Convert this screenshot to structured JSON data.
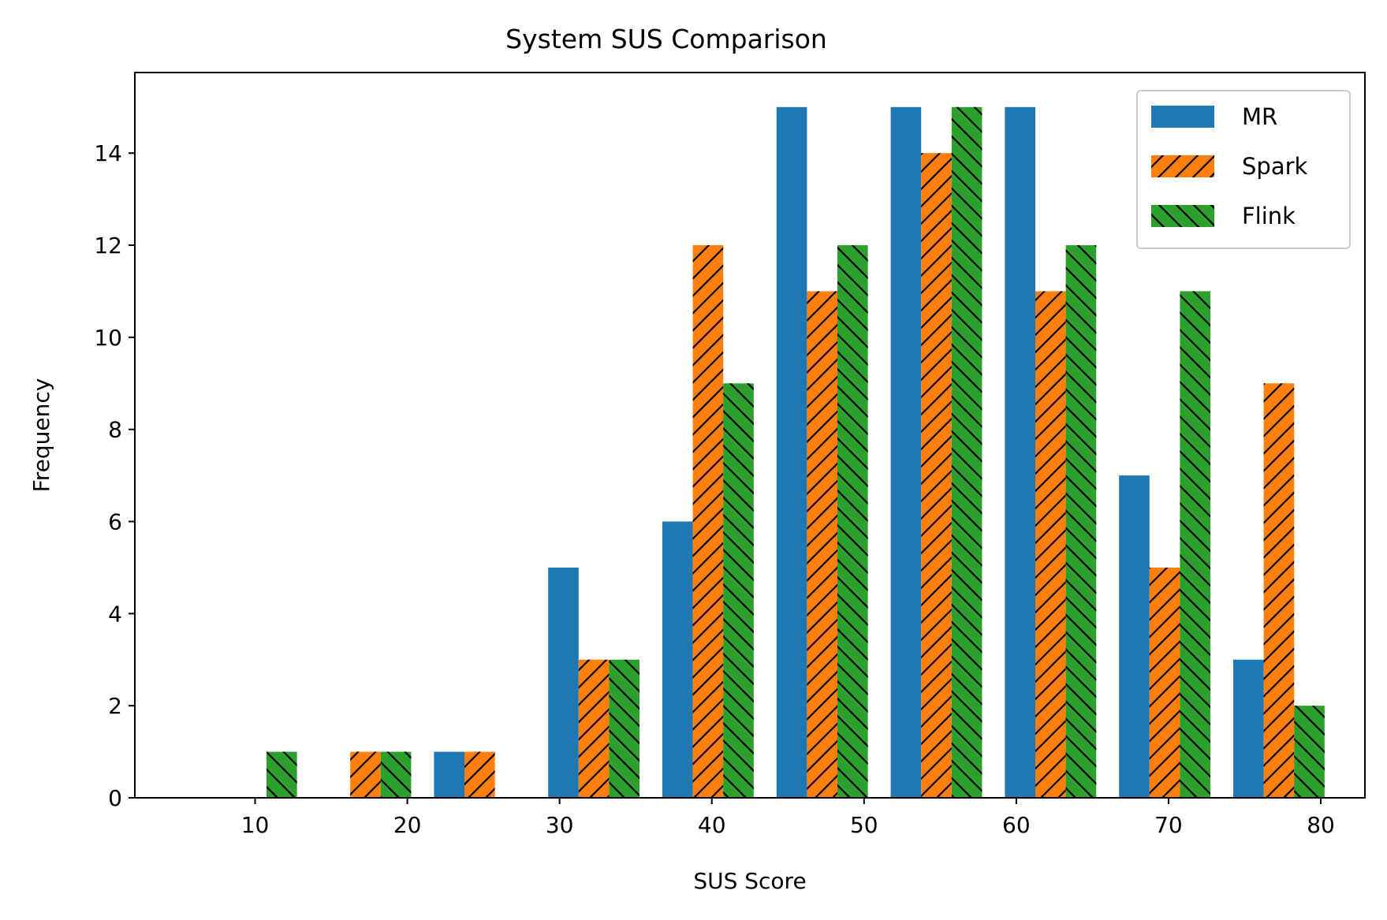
{
  "chart_data": {
    "type": "bar",
    "title": "System SUS Comparison",
    "xlabel": "SUS Score",
    "ylabel": "Frequency",
    "x_ticks": [
      10,
      20,
      30,
      40,
      50,
      60,
      70,
      80
    ],
    "y_ticks": [
      0,
      2,
      4,
      6,
      8,
      10,
      12,
      14
    ],
    "xlim": [
      2.1,
      82.9
    ],
    "ylim": [
      0,
      15.75
    ],
    "bin_edges": [
      6.0,
      13.5,
      21.0,
      28.5,
      36.0,
      43.5,
      51.0,
      58.5,
      66.0,
      73.5,
      81.0
    ],
    "legend_position": "upper right",
    "grid": false,
    "series": [
      {
        "name": "MR",
        "color": "#1f77b4",
        "hatch": "none",
        "values": [
          0,
          0,
          1,
          5,
          6,
          15,
          15,
          15,
          7,
          3
        ]
      },
      {
        "name": "Spark",
        "color": "#ff7f0e",
        "hatch": "slash",
        "values": [
          0,
          1,
          1,
          3,
          12,
          11,
          14,
          11,
          5,
          9
        ]
      },
      {
        "name": "Flink",
        "color": "#2ca02c",
        "hatch": "backslash",
        "values": [
          1,
          1,
          0,
          3,
          9,
          12,
          15,
          12,
          11,
          2
        ]
      }
    ]
  }
}
